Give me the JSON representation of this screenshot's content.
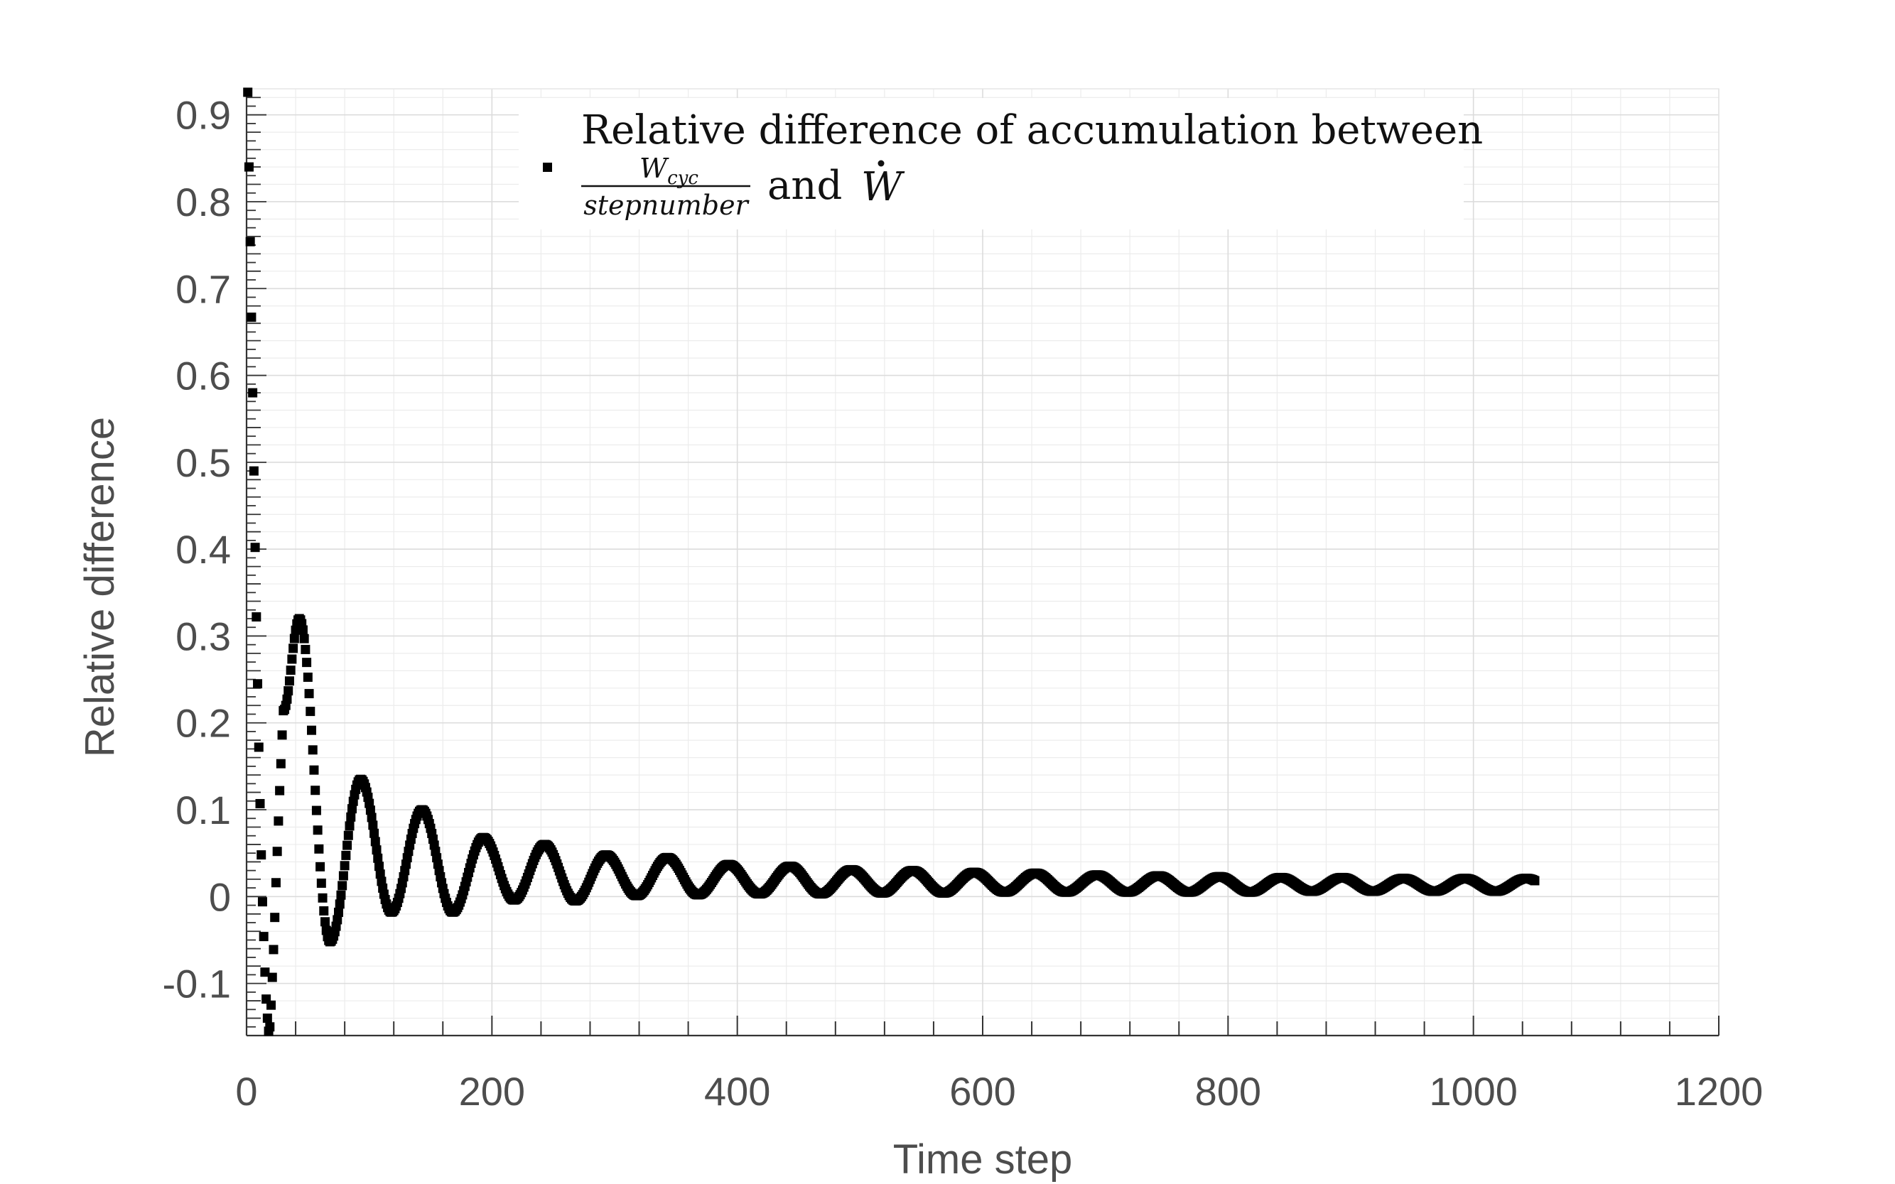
{
  "chart_data": {
    "type": "scatter",
    "xlabel": "Time step",
    "ylabel": "Relative difference",
    "xlim": [
      0,
      1200
    ],
    "ylim": [
      -0.16,
      0.93
    ],
    "xticks": [
      "0",
      "200",
      "400",
      "600",
      "800",
      "1000",
      "1200"
    ],
    "yticks": [
      "-0.1",
      "0",
      "0.1",
      "0.2",
      "0.3",
      "0.4",
      "0.5",
      "0.6",
      "0.7",
      "0.8",
      "0.9"
    ],
    "grid": true,
    "minor_grid": true,
    "legend_position": "top",
    "marker": "square",
    "color": "#000000",
    "legend": {
      "line1": "Relative difference of accumulation between",
      "frac_numerator": "W",
      "frac_numerator_sub": "cyc",
      "frac_denominator": "stepnumber",
      "connector": "and",
      "w_dot": "W"
    },
    "series": [
      {
        "initial_points": {
          "x": [
            1,
            2,
            3,
            4,
            5,
            6,
            7,
            8,
            9,
            10,
            11,
            12,
            13,
            14,
            15,
            16,
            17,
            18,
            19,
            20,
            21,
            22,
            23,
            24,
            25,
            26,
            27,
            28,
            29,
            30
          ],
          "y": [
            0.926,
            0.84,
            0.754,
            0.667,
            0.58,
            0.49,
            0.402,
            0.322,
            0.245,
            0.172,
            0.107,
            0.048,
            -0.006,
            -0.046,
            -0.087,
            -0.118,
            -0.14,
            -0.155,
            -0.15,
            -0.125,
            -0.093,
            -0.061,
            -0.024,
            0.016,
            0.052,
            0.087,
            0.122,
            0.153,
            0.186,
            0.214
          ]
        },
        "oscillation": {
          "x_start": 30,
          "x_end": 1050,
          "step": 1,
          "period": 50,
          "peak_x_first": 43,
          "peaks": [
            0.32,
            0.135,
            0.1,
            0.068,
            0.06,
            0.048,
            0.045,
            0.037,
            0.035,
            0.031,
            0.03,
            0.028,
            0.027,
            0.025,
            0.024,
            0.023,
            0.022,
            0.022,
            0.021,
            0.021,
            0.021
          ],
          "troughs": [
            -0.052,
            -0.018,
            -0.018,
            -0.004,
            -0.005,
            0.001,
            0.002,
            0.003,
            0.003,
            0.004,
            0.004,
            0.005,
            0.005,
            0.005,
            0.005,
            0.005,
            0.006,
            0.006,
            0.006,
            0.006,
            0.006
          ],
          "end_value": 0.021
        }
      }
    ]
  }
}
